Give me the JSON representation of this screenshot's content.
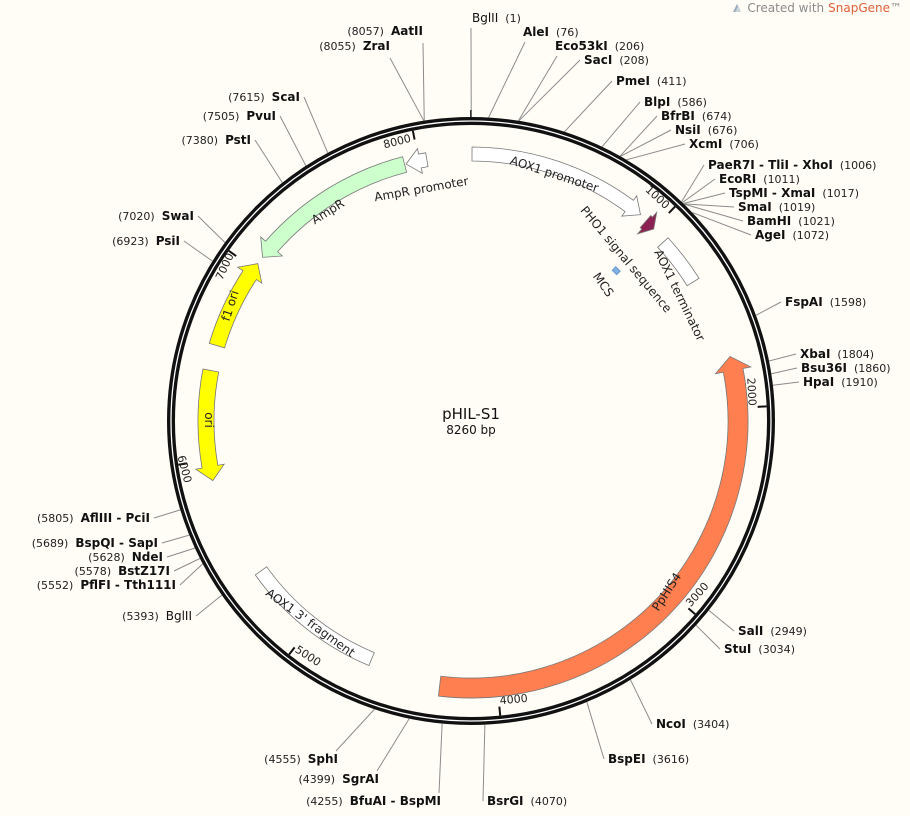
{
  "header": {
    "credit_prefix": "Created with",
    "credit_brand": "SnapGene",
    "credit_suffix": "™"
  },
  "plasmid": {
    "name": "pHIL-S1",
    "length_label": "8260 bp",
    "length_bp": 8260
  },
  "ticks": [
    "1000",
    "2000",
    "3000",
    "4000",
    "5000",
    "6000",
    "7000",
    "8000"
  ],
  "colors": {
    "ring": "#111111",
    "leader": "#8c8c8c",
    "PpHIS4": "#ff7f50",
    "ori": "#ffff00",
    "AmpR": "#ccffcc",
    "PHO1": "#8b2252",
    "MCS": "#7fb2e5",
    "white": "#ffffff",
    "brand": "#e0603a"
  },
  "features": [
    {
      "name": "AOX1 promoter",
      "start": 5,
      "end": 904,
      "dir": "cw",
      "color": "#ffffff"
    },
    {
      "name": "PHO1 signal sequence",
      "start": 945,
      "end": 1000,
      "dir": "cw",
      "color": "#8b2252"
    },
    {
      "name": "MCS",
      "start": 990,
      "end": 1030,
      "dir": "none",
      "color": "#7fb2e5"
    },
    {
      "name": "AOX1 terminator",
      "start": 1080,
      "end": 1330,
      "dir": "none",
      "color": "#ffffff"
    },
    {
      "name": "PpHIS4",
      "start": 1744,
      "end": 4285,
      "dir": "ccw",
      "color": "#ff7f50"
    },
    {
      "name": "AOX1 3' fragment",
      "start": 4650,
      "end": 5380,
      "dir": "none",
      "color": "#ffffff"
    },
    {
      "name": "ori",
      "start": 5897,
      "end": 6447,
      "dir": "ccw",
      "color": "#ffff00"
    },
    {
      "name": "f1 ori",
      "start": 6574,
      "end": 7031,
      "dir": "cw",
      "color": "#ffff00"
    },
    {
      "name": "AmpR",
      "start": 7070,
      "end": 7927,
      "dir": "ccw",
      "color": "#ccffcc"
    },
    {
      "name": "AmpR promoter",
      "start": 7935,
      "end": 8040,
      "dir": "ccw",
      "color": "#ffffff"
    }
  ],
  "enzymes": [
    {
      "name": "BglII",
      "pos": "1",
      "bp": 1,
      "unique": false
    },
    {
      "name": "AleI",
      "pos": "76",
      "bp": 76,
      "unique": true
    },
    {
      "name": "Eco53kI",
      "pos": "206",
      "bp": 206,
      "unique": true
    },
    {
      "name": "SacI",
      "pos": "208",
      "bp": 208,
      "unique": true
    },
    {
      "name": "PmeI",
      "pos": "411",
      "bp": 411,
      "unique": true
    },
    {
      "name": "BlpI",
      "pos": "586",
      "bp": 586,
      "unique": true
    },
    {
      "name": "BfrBI",
      "pos": "674",
      "bp": 674,
      "unique": true
    },
    {
      "name": "NsiI",
      "pos": "676",
      "bp": 676,
      "unique": true
    },
    {
      "name": "XcmI",
      "pos": "706",
      "bp": 706,
      "unique": true
    },
    {
      "name": "PaeR7I - TliI - XhoI",
      "pos": "1006",
      "bp": 1006,
      "unique": true
    },
    {
      "name": "EcoRI",
      "pos": "1011",
      "bp": 1011,
      "unique": true
    },
    {
      "name": "TspMI - XmaI",
      "pos": "1017",
      "bp": 1017,
      "unique": true
    },
    {
      "name": "SmaI",
      "pos": "1019",
      "bp": 1019,
      "unique": true
    },
    {
      "name": "BamHI",
      "pos": "1021",
      "bp": 1021,
      "unique": true
    },
    {
      "name": "AgeI",
      "pos": "1072",
      "bp": 1072,
      "unique": true
    },
    {
      "name": "FspAI",
      "pos": "1598",
      "bp": 1598,
      "unique": true
    },
    {
      "name": "XbaI",
      "pos": "1804",
      "bp": 1804,
      "unique": true
    },
    {
      "name": "Bsu36I",
      "pos": "1860",
      "bp": 1860,
      "unique": true
    },
    {
      "name": "HpaI",
      "pos": "1910",
      "bp": 1910,
      "unique": true
    },
    {
      "name": "SalI",
      "pos": "2949",
      "bp": 2949,
      "unique": true
    },
    {
      "name": "StuI",
      "pos": "3034",
      "bp": 3034,
      "unique": true
    },
    {
      "name": "NcoI",
      "pos": "3404",
      "bp": 3404,
      "unique": true
    },
    {
      "name": "BspEI",
      "pos": "3616",
      "bp": 3616,
      "unique": true
    },
    {
      "name": "BsrGI",
      "pos": "4070",
      "bp": 4070,
      "unique": true
    },
    {
      "name": "BfuAI - BspMI",
      "pos": "4255",
      "bp": 4255,
      "unique": true
    },
    {
      "name": "SgrAI",
      "pos": "4399",
      "bp": 4399,
      "unique": true
    },
    {
      "name": "SphI",
      "pos": "4555",
      "bp": 4555,
      "unique": true
    },
    {
      "name": "BglII",
      "pos": "5393",
      "bp": 5393,
      "unique": false
    },
    {
      "name": "PflFI - Tth111I",
      "pos": "5552",
      "bp": 5552,
      "unique": true
    },
    {
      "name": "BstZ17I",
      "pos": "5578",
      "bp": 5578,
      "unique": true
    },
    {
      "name": "NdeI",
      "pos": "5628",
      "bp": 5628,
      "unique": true
    },
    {
      "name": "BspQI - SapI",
      "pos": "5689",
      "bp": 5689,
      "unique": true
    },
    {
      "name": "AflIII - PciI",
      "pos": "5805",
      "bp": 5805,
      "unique": true
    },
    {
      "name": "PsiI",
      "pos": "6923",
      "bp": 6923,
      "unique": true
    },
    {
      "name": "SwaI",
      "pos": "7020",
      "bp": 7020,
      "unique": true
    },
    {
      "name": "PstI",
      "pos": "7380",
      "bp": 7380,
      "unique": true
    },
    {
      "name": "PvuI",
      "pos": "7505",
      "bp": 7505,
      "unique": true
    },
    {
      "name": "ScaI",
      "pos": "7615",
      "bp": 7615,
      "unique": true
    },
    {
      "name": "ZraI",
      "pos": "8055",
      "bp": 8055,
      "unique": true
    },
    {
      "name": "AatII",
      "pos": "8057",
      "bp": 8057,
      "unique": true
    }
  ]
}
